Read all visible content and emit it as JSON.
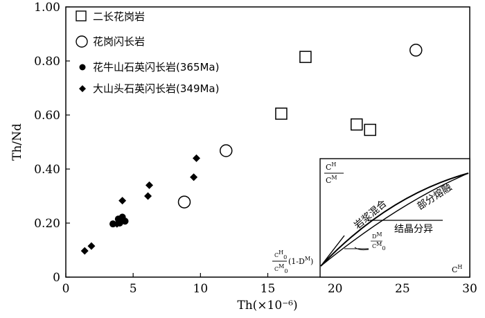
{
  "chart_data": {
    "type": "scatter",
    "title": "",
    "xlabel": "Th(×10⁻⁶)",
    "ylabel": "Th/Nd",
    "xlim": [
      0,
      30
    ],
    "ylim": [
      0,
      1.0
    ],
    "x_ticks": [
      0,
      5,
      10,
      15,
      20,
      25,
      30
    ],
    "y_ticks": [
      "0",
      "0.20",
      "0.40",
      "0.60",
      "0.80",
      "1.00"
    ],
    "legend_position": "top-left",
    "series": [
      {
        "name": "二长花岗岩",
        "marker": "open-square",
        "points": [
          [
            16.0,
            0.605
          ],
          [
            17.8,
            0.815
          ],
          [
            21.6,
            0.565
          ],
          [
            22.6,
            0.545
          ]
        ]
      },
      {
        "name": "花岗闪长岩",
        "marker": "open-circle",
        "points": [
          [
            8.8,
            0.278
          ],
          [
            11.9,
            0.468
          ],
          [
            26.0,
            0.84
          ]
        ]
      },
      {
        "name": "花牛山石英闪长岩(365Ma)",
        "marker": "filled-circle",
        "points": [
          [
            3.5,
            0.197
          ],
          [
            3.9,
            0.215
          ],
          [
            4.2,
            0.222
          ],
          [
            4.4,
            0.207
          ],
          [
            4.0,
            0.2
          ]
        ]
      },
      {
        "name": "大山头石英闪长岩(349Ma)",
        "marker": "filled-diamond",
        "points": [
          [
            1.4,
            0.097
          ],
          [
            1.9,
            0.115
          ],
          [
            3.8,
            0.197
          ],
          [
            4.2,
            0.283
          ],
          [
            6.1,
            0.3
          ],
          [
            6.2,
            0.34
          ],
          [
            9.5,
            0.37
          ],
          [
            9.7,
            0.44
          ]
        ]
      }
    ],
    "inset": {
      "y_axis_label_num": "C",
      "y_axis_label_num_sup": "H",
      "y_axis_label_den": "C",
      "y_axis_label_den_sup": "M",
      "x_axis_label": "C",
      "x_axis_label_sup": "H",
      "intercept_num": "C",
      "intercept_num_sup": "H",
      "intercept_num_sub": "0",
      "intercept_den": "C",
      "intercept_den_sup": "M",
      "intercept_den_sub": "0",
      "intercept_suffix": "(1-D",
      "intercept_suffix_sup": "M",
      "intercept_suffix_end": ")",
      "curve_magma_mixing": "岩浆混合",
      "curve_partial_melting": "部分熔融",
      "curve_fractional_crystallization": "结晶分异",
      "slope_num": "D",
      "slope_num_sup": "M",
      "slope_den": "C",
      "slope_den_sup": "M",
      "slope_den_sub": "0"
    }
  }
}
